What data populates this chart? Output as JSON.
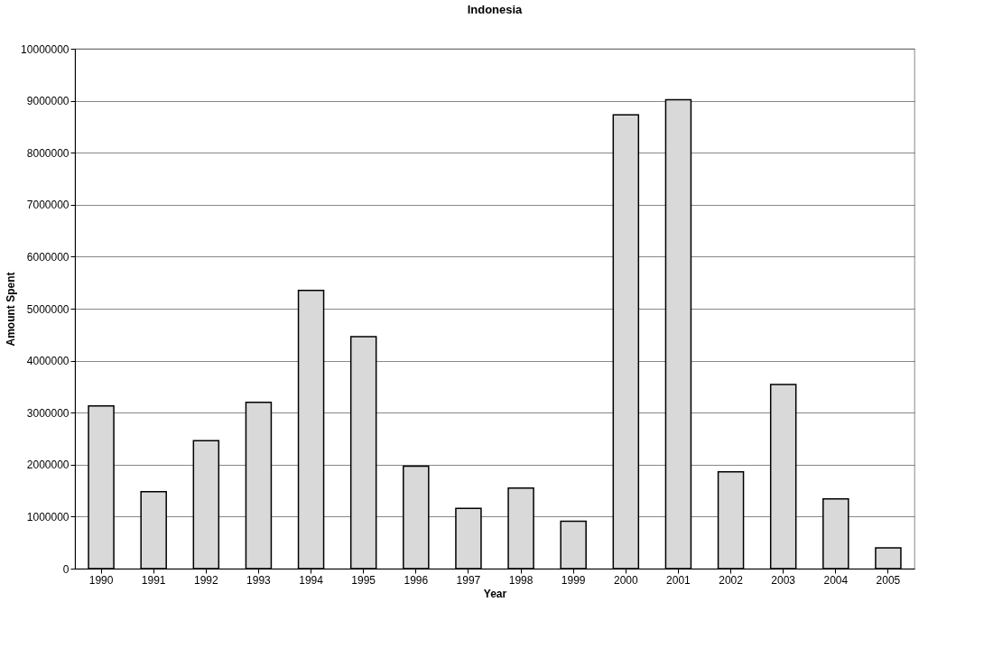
{
  "chart_data": {
    "type": "bar",
    "title": "Indonesia",
    "xlabel": "Year",
    "ylabel": "Amount Spent",
    "categories": [
      "1990",
      "1991",
      "1992",
      "1993",
      "1994",
      "1995",
      "1996",
      "1997",
      "1998",
      "1999",
      "2000",
      "2001",
      "2002",
      "2003",
      "2004",
      "2005"
    ],
    "values": [
      3130000,
      1480000,
      2460000,
      3200000,
      5350000,
      4460000,
      1970000,
      1160000,
      1550000,
      910000,
      8730000,
      9020000,
      1860000,
      3540000,
      1340000,
      400000
    ],
    "color": "#d9d9d9",
    "ylim": [
      0,
      10000000
    ],
    "yticks": [
      0,
      1000000,
      2000000,
      3000000,
      4000000,
      5000000,
      6000000,
      7000000,
      8000000,
      9000000,
      10000000
    ],
    "grid": "y"
  }
}
